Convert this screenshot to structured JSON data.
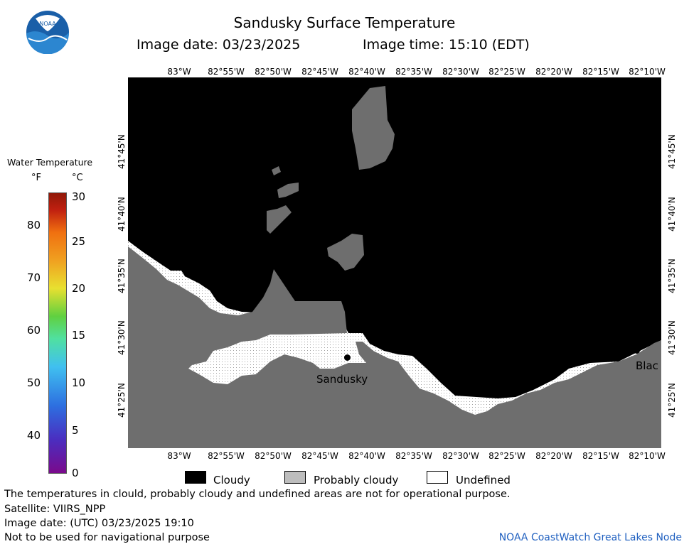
{
  "header": {
    "title": "Sandusky Surface Temperature",
    "image_date": "Image date: 03/23/2025",
    "image_time": "Image time: 15:10 (EDT)"
  },
  "logo": {
    "text": "NOAA"
  },
  "longitude_labels": [
    "83°W",
    "82°55'W",
    "82°50'W",
    "82°45'W",
    "82°40'W",
    "82°35'W",
    "82°30'W",
    "82°25'W",
    "82°20'W",
    "82°15'W",
    "82°10'W"
  ],
  "latitude_labels": [
    "41°45'N",
    "41°40'N",
    "41°35'N",
    "41°30'N",
    "41°25'N"
  ],
  "places": [
    {
      "name": "Sandusky"
    },
    {
      "name": "Blac"
    }
  ],
  "color_scale": {
    "title": "Water Temperature",
    "unit_f": "°F",
    "unit_c": "°C",
    "fahrenheit_ticks": [
      "80",
      "70",
      "60",
      "50",
      "40"
    ],
    "celsius_ticks": [
      "30",
      "25",
      "20",
      "15",
      "10",
      "5",
      "0"
    ],
    "colors": [
      "#7a0a8c",
      "#4a2ec0",
      "#2d6fe0",
      "#40c0f0",
      "#50e0a0",
      "#60d040",
      "#e8e030",
      "#f0a020",
      "#f07010",
      "#c02010",
      "#901808"
    ]
  },
  "legend": {
    "items": [
      {
        "label": "Cloudy",
        "color": "#000000"
      },
      {
        "label": "Probably cloudy",
        "color": "#bdbdbd"
      },
      {
        "label": "Undefined",
        "color": "#ffffff"
      }
    ]
  },
  "footer": {
    "disclaimer": "The temperatures in clould, probably cloudy and undefined areas are not for operational purpose.",
    "satellite": "Satellite: VIIRS_NPP",
    "utc_date": "Image date: (UTC) 03/23/2025  19:10",
    "navigation": "Not to be used for navigational purpose",
    "credit": "NOAA CoastWatch Great Lakes Node"
  }
}
